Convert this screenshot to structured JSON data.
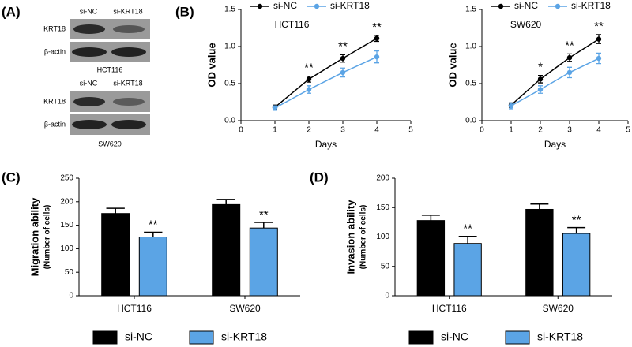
{
  "panel_labels": [
    "(A)",
    "(B)",
    "(C)",
    "(D)"
  ],
  "blots": [
    {
      "columns": [
        "si-NC",
        "si-KRT18"
      ],
      "rows": [
        "KRT18",
        "β-actin"
      ],
      "cell_line": "HCT116"
    },
    {
      "columns": [
        "si-NC",
        "si-KRT18"
      ],
      "rows": [
        "KRT18",
        "β-actin"
      ],
      "cell_line": "SW620"
    }
  ],
  "chart_data": [
    {
      "type": "line",
      "title": "HCT116",
      "x_label": "Days",
      "y_label": "OD value",
      "x": [
        1,
        2,
        3,
        4
      ],
      "xlim": [
        0,
        5
      ],
      "xticks": [
        0,
        1,
        2,
        3,
        4,
        5
      ],
      "ylim": [
        0,
        1.5
      ],
      "yticks": [
        {
          "value": 0,
          "label": "0.0"
        },
        {
          "value": 0.5,
          "label": "0.5"
        },
        {
          "value": 1,
          "label": "1.0"
        },
        {
          "value": 1.5,
          "label": "1.5"
        }
      ],
      "series": [
        {
          "name": "si-NC",
          "color": "#000000",
          "values": [
            0.18,
            0.56,
            0.84,
            1.11
          ],
          "errors": [
            0.03,
            0.04,
            0.05,
            0.04
          ],
          "significance": [
            null,
            "**",
            "**",
            "**"
          ]
        },
        {
          "name": "si-KRT18",
          "color": "#5ba4e5",
          "values": [
            0.17,
            0.42,
            0.65,
            0.86
          ],
          "errors": [
            0.03,
            0.05,
            0.06,
            0.08
          ]
        }
      ]
    },
    {
      "type": "line",
      "title": "SW620",
      "x_label": "Days",
      "y_label": "OD value",
      "x": [
        1,
        2,
        3,
        4
      ],
      "xlim": [
        0,
        5
      ],
      "xticks": [
        0,
        1,
        2,
        3,
        4,
        5
      ],
      "ylim": [
        0,
        1.5
      ],
      "yticks": [
        {
          "value": 0,
          "label": "0.0"
        },
        {
          "value": 0.5,
          "label": "0.5"
        },
        {
          "value": 1,
          "label": "1.0"
        },
        {
          "value": 1.5,
          "label": "1.5"
        }
      ],
      "series": [
        {
          "name": "si-NC",
          "color": "#000000",
          "values": [
            0.21,
            0.56,
            0.85,
            1.1
          ],
          "errors": [
            0.03,
            0.05,
            0.05,
            0.06
          ],
          "significance": [
            null,
            "*",
            "**",
            "**"
          ]
        },
        {
          "name": "si-KRT18",
          "color": "#5ba4e5",
          "values": [
            0.2,
            0.42,
            0.65,
            0.84
          ],
          "errors": [
            0.04,
            0.05,
            0.07,
            0.07
          ]
        }
      ]
    },
    {
      "type": "bar",
      "y_label": "Migration ability",
      "y_sublabel": "(Number of cells)",
      "categories": [
        "HCT116",
        "SW620"
      ],
      "ylim": [
        0,
        250
      ],
      "yticks": [
        0,
        50,
        100,
        150,
        200,
        250
      ],
      "series": [
        {
          "name": "si-NC",
          "color": "#000000",
          "values": [
            175,
            194
          ],
          "errors": [
            11,
            11
          ]
        },
        {
          "name": "si-KRT18",
          "color": "#5ba4e5",
          "values": [
            125,
            144
          ],
          "errors": [
            10,
            12
          ],
          "significance": [
            "**",
            "**"
          ]
        }
      ]
    },
    {
      "type": "bar",
      "y_label": "Invasion ability",
      "y_sublabel": "(Number of cells)",
      "categories": [
        "HCT116",
        "SW620"
      ],
      "ylim": [
        0,
        200
      ],
      "yticks": [
        0,
        50,
        100,
        150,
        200
      ],
      "series": [
        {
          "name": "si-NC",
          "color": "#000000",
          "values": [
            128,
            147
          ],
          "errors": [
            9,
            9
          ]
        },
        {
          "name": "si-KRT18",
          "color": "#5ba4e5",
          "values": [
            89,
            106
          ],
          "errors": [
            12,
            10
          ],
          "significance": [
            "**",
            "**"
          ]
        }
      ]
    }
  ]
}
